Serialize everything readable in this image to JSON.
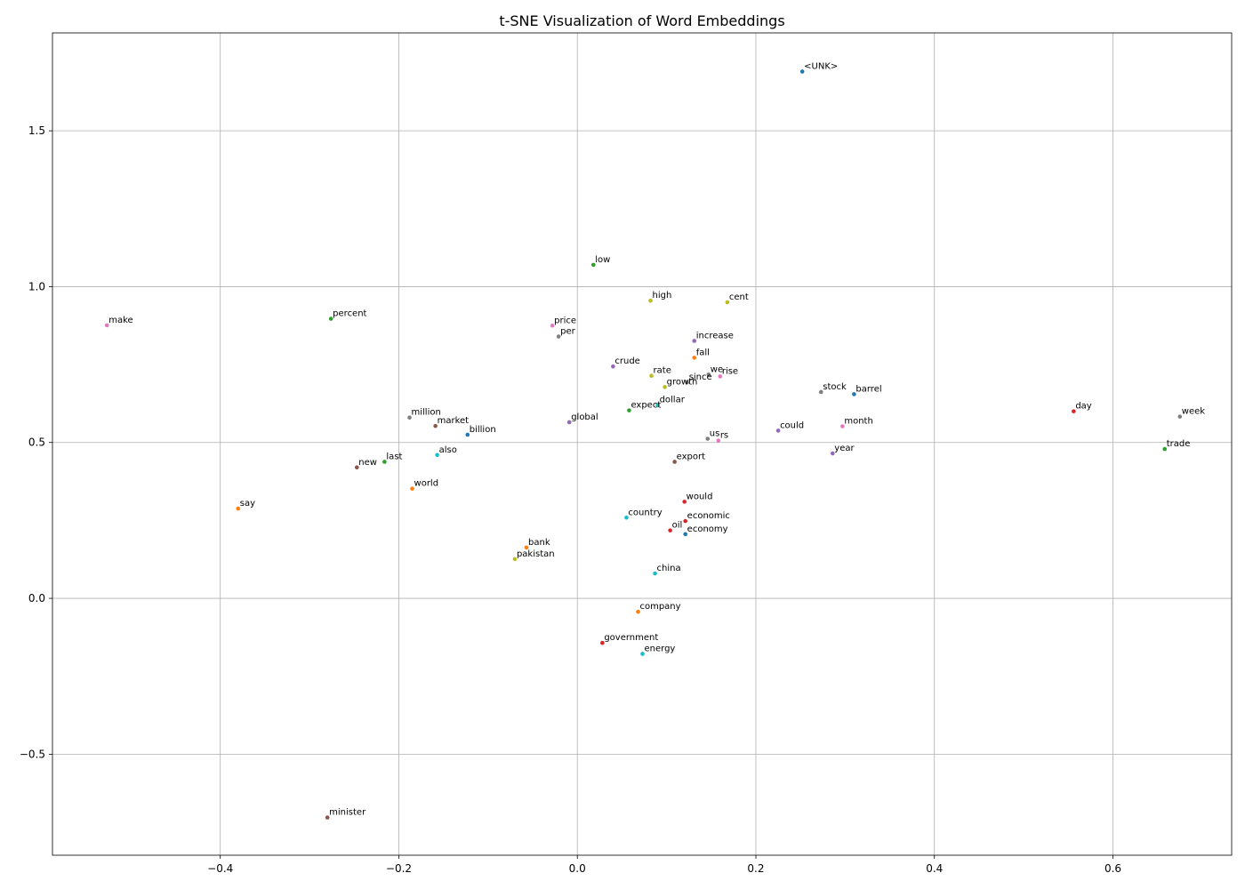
{
  "chart_data": {
    "type": "scatter",
    "title": "t-SNE Visualization of Word Embeddings",
    "xlabel": "",
    "ylabel": "",
    "xlim": [
      -0.588,
      0.733
    ],
    "ylim": [
      -0.824,
      1.814
    ],
    "xticks": [
      -0.4,
      -0.2,
      0.0,
      0.2,
      0.4,
      0.6
    ],
    "xtick_labels": [
      "−0.4",
      "−0.2",
      "0.0",
      "0.2",
      "0.4",
      "0.6"
    ],
    "yticks": [
      -0.5,
      0.0,
      0.5,
      1.0,
      1.5
    ],
    "ytick_labels": [
      "−0.5",
      "0.0",
      "0.5",
      "1.0",
      "1.5"
    ],
    "grid": true,
    "legend": "none",
    "points": [
      {
        "label": "<UNK>",
        "x": 0.252,
        "y": 1.69,
        "color": "#1f77b4"
      },
      {
        "label": "low",
        "x": 0.018,
        "y": 1.07,
        "color": "#2ca02c"
      },
      {
        "label": "high",
        "x": 0.082,
        "y": 0.955,
        "color": "#bcbd22"
      },
      {
        "label": "cent",
        "x": 0.168,
        "y": 0.95,
        "color": "#bcbd22"
      },
      {
        "label": "make",
        "x": -0.527,
        "y": 0.876,
        "color": "#e377c2"
      },
      {
        "label": "percent",
        "x": -0.276,
        "y": 0.897,
        "color": "#2ca02c"
      },
      {
        "label": "price",
        "x": -0.028,
        "y": 0.875,
        "color": "#e377c2"
      },
      {
        "label": "per",
        "x": -0.021,
        "y": 0.84,
        "color": "#7f7f7f"
      },
      {
        "label": "increase",
        "x": 0.131,
        "y": 0.826,
        "color": "#9467bd"
      },
      {
        "label": "fall",
        "x": 0.131,
        "y": 0.772,
        "color": "#ff7f0e"
      },
      {
        "label": "crude",
        "x": 0.04,
        "y": 0.744,
        "color": "#9467bd"
      },
      {
        "label": "rate",
        "x": 0.083,
        "y": 0.714,
        "color": "#bcbd22"
      },
      {
        "label": "we",
        "x": 0.147,
        "y": 0.718,
        "color": "#7f7f7f"
      },
      {
        "label": "rise",
        "x": 0.16,
        "y": 0.712,
        "color": "#e377c2"
      },
      {
        "label": "since",
        "x": 0.123,
        "y": 0.693,
        "color": "#7f7f7f"
      },
      {
        "label": "growth",
        "x": 0.098,
        "y": 0.678,
        "color": "#bcbd22"
      },
      {
        "label": "stock",
        "x": 0.273,
        "y": 0.662,
        "color": "#7f7f7f"
      },
      {
        "label": "barrel",
        "x": 0.31,
        "y": 0.655,
        "color": "#1f77b4"
      },
      {
        "label": "dollar",
        "x": 0.09,
        "y": 0.62,
        "color": "#17becf"
      },
      {
        "label": "expect",
        "x": 0.058,
        "y": 0.603,
        "color": "#2ca02c"
      },
      {
        "label": "day",
        "x": 0.556,
        "y": 0.6,
        "color": "#d62728"
      },
      {
        "label": "week",
        "x": 0.675,
        "y": 0.583,
        "color": "#7f7f7f"
      },
      {
        "label": "million",
        "x": -0.188,
        "y": 0.58,
        "color": "#7f7f7f"
      },
      {
        "label": "global",
        "x": -0.009,
        "y": 0.565,
        "color": "#9467bd"
      },
      {
        "label": "market",
        "x": -0.159,
        "y": 0.553,
        "color": "#8c564b"
      },
      {
        "label": "month",
        "x": 0.297,
        "y": 0.552,
        "color": "#e377c2"
      },
      {
        "label": "could",
        "x": 0.225,
        "y": 0.538,
        "color": "#9467bd"
      },
      {
        "label": "billion",
        "x": -0.123,
        "y": 0.525,
        "color": "#1f77b4"
      },
      {
        "label": "us",
        "x": 0.146,
        "y": 0.512,
        "color": "#7f7f7f"
      },
      {
        "label": "rs",
        "x": 0.158,
        "y": 0.506,
        "color": "#e377c2"
      },
      {
        "label": "trade",
        "x": 0.658,
        "y": 0.479,
        "color": "#2ca02c"
      },
      {
        "label": "year",
        "x": 0.286,
        "y": 0.465,
        "color": "#9467bd"
      },
      {
        "label": "also",
        "x": -0.157,
        "y": 0.46,
        "color": "#17becf"
      },
      {
        "label": "export",
        "x": 0.109,
        "y": 0.438,
        "color": "#8c564b"
      },
      {
        "label": "last",
        "x": -0.216,
        "y": 0.438,
        "color": "#2ca02c"
      },
      {
        "label": "new",
        "x": -0.247,
        "y": 0.42,
        "color": "#8c564b"
      },
      {
        "label": "world",
        "x": -0.185,
        "y": 0.352,
        "color": "#ff7f0e"
      },
      {
        "label": "would",
        "x": 0.12,
        "y": 0.31,
        "color": "#d62728"
      },
      {
        "label": "say",
        "x": -0.38,
        "y": 0.288,
        "color": "#ff7f0e"
      },
      {
        "label": "country",
        "x": 0.055,
        "y": 0.259,
        "color": "#17becf"
      },
      {
        "label": "economic",
        "x": 0.121,
        "y": 0.248,
        "color": "#d62728"
      },
      {
        "label": "oil",
        "x": 0.104,
        "y": 0.218,
        "color": "#d62728"
      },
      {
        "label": "economy",
        "x": 0.121,
        "y": 0.206,
        "color": "#1f77b4"
      },
      {
        "label": "bank",
        "x": -0.057,
        "y": 0.163,
        "color": "#ff7f0e"
      },
      {
        "label": "pakistan",
        "x": -0.07,
        "y": 0.126,
        "color": "#bcbd22"
      },
      {
        "label": "china",
        "x": 0.087,
        "y": 0.08,
        "color": "#17becf"
      },
      {
        "label": "company",
        "x": 0.068,
        "y": -0.043,
        "color": "#ff7f0e"
      },
      {
        "label": "government",
        "x": 0.028,
        "y": -0.143,
        "color": "#d62728"
      },
      {
        "label": "energy",
        "x": 0.073,
        "y": -0.178,
        "color": "#17becf"
      },
      {
        "label": "minister",
        "x": -0.28,
        "y": -0.703,
        "color": "#8c564b"
      }
    ]
  }
}
